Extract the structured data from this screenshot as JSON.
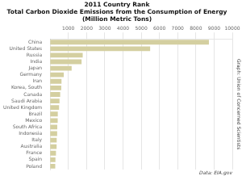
{
  "chart_data": {
    "type": "bar",
    "orientation": "horizontal",
    "title": [
      "2011 Country Rank",
      "Total Carbon Dioxide Emissions from the Consumption of Energy",
      "(Million Metric Tons)"
    ],
    "categories": [
      "China",
      "United States",
      "Russia",
      "India",
      "Japan",
      "Germany",
      "Iran",
      "Korea, South",
      "Canada",
      "Saudi Arabia",
      "United Kingdom",
      "Brazil",
      "Mexico",
      "South Africa",
      "Indonesia",
      "Italy",
      "Australia",
      "France",
      "Spain",
      "Poland"
    ],
    "values": [
      8715,
      5490,
      1788,
      1725,
      1180,
      748,
      624,
      610,
      552,
      513,
      490,
      420,
      415,
      390,
      385,
      360,
      355,
      320,
      290,
      280
    ],
    "color": "#d4cfa0",
    "xlim": [
      0,
      10000
    ],
    "xticks": [
      1000,
      2000,
      3000,
      4000,
      5000,
      6000,
      7000,
      8000,
      9000,
      10000
    ],
    "grid": true,
    "annotations": [
      "Graph: Union of Concerned Scientists",
      "Data: EIA.gov"
    ]
  }
}
